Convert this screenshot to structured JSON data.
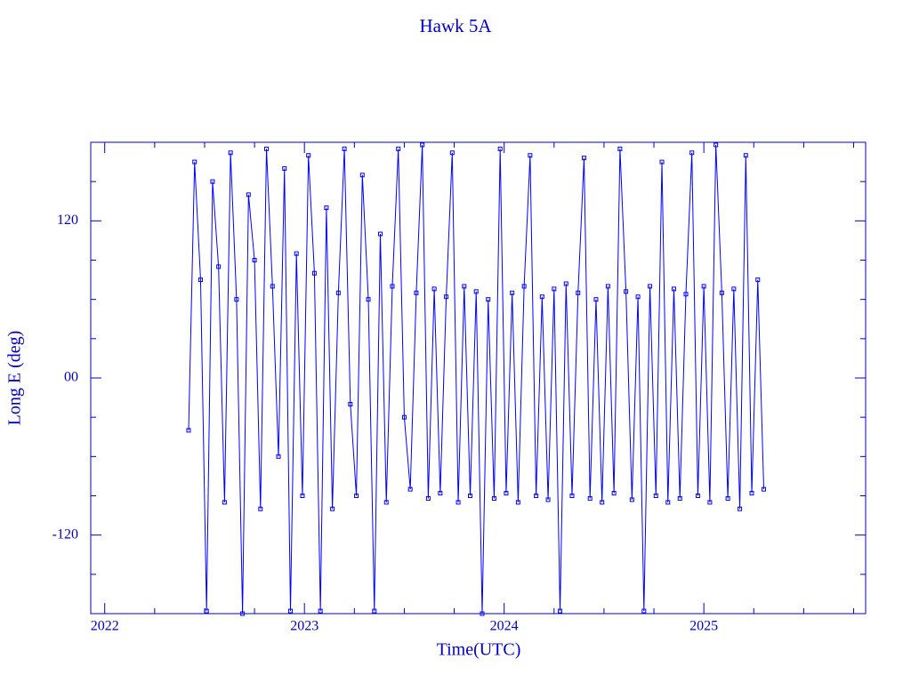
{
  "chart_data": {
    "type": "line",
    "title": "Hawk 5A",
    "xlabel": "Time(UTC)",
    "ylabel": "Long E (deg)",
    "x": [
      2022.42,
      2022.45,
      2022.48,
      2022.51,
      2022.54,
      2022.57,
      2022.6,
      2022.63,
      2022.66,
      2022.69,
      2022.72,
      2022.75,
      2022.78,
      2022.81,
      2022.84,
      2022.87,
      2022.9,
      2022.93,
      2022.96,
      2022.99,
      2023.02,
      2023.05,
      2023.08,
      2023.11,
      2023.14,
      2023.17,
      2023.2,
      2023.23,
      2023.26,
      2023.29,
      2023.32,
      2023.35,
      2023.38,
      2023.41,
      2023.44,
      2023.47,
      2023.5,
      2023.53,
      2023.56,
      2023.59,
      2023.62,
      2023.65,
      2023.68,
      2023.71,
      2023.74,
      2023.77,
      2023.8,
      2023.83,
      2023.86,
      2023.89,
      2023.92,
      2023.95,
      2023.98,
      2024.01,
      2024.04,
      2024.07,
      2024.1,
      2024.13,
      2024.16,
      2024.19,
      2024.22,
      2024.25,
      2024.28,
      2024.31,
      2024.34,
      2024.37,
      2024.4,
      2024.43,
      2024.46,
      2024.49,
      2024.52,
      2024.55,
      2024.58,
      2024.61,
      2024.64,
      2024.67,
      2024.7,
      2024.73,
      2024.76,
      2024.79,
      2024.82,
      2024.85,
      2024.88,
      2024.91,
      2024.94,
      2024.97,
      2025.0,
      2025.03,
      2025.06,
      2025.09,
      2025.12,
      2025.15,
      2025.18,
      2025.21,
      2025.24,
      2025.27,
      2025.3
    ],
    "series": [
      {
        "color": "#0000ff",
        "values": [
          -40,
          165,
          75,
          -178,
          150,
          85,
          -95,
          172,
          60,
          -180,
          140,
          90,
          -100,
          175,
          70,
          -60,
          160,
          -178,
          95,
          -90,
          170,
          80,
          -178,
          130,
          -100,
          65,
          175,
          -20,
          -90,
          155,
          60,
          -178,
          110,
          -95,
          70,
          175,
          -30,
          -85,
          65,
          178,
          -92,
          68,
          -88,
          62,
          172,
          -95,
          70,
          -90,
          66,
          -180,
          60,
          -92,
          175,
          -88,
          65,
          -95,
          70,
          170,
          -90,
          62,
          -93,
          68,
          -178,
          72,
          -90,
          65,
          168,
          -92,
          60,
          -95,
          70,
          -88,
          175,
          66,
          -93,
          62,
          -178,
          70,
          -90,
          165,
          -95,
          68,
          -92,
          64,
          172,
          -90,
          70,
          -95,
          178,
          65,
          -92,
          68,
          -100,
          170,
          -88,
          75,
          -85
        ]
      }
    ],
    "xlim": [
      2021.93,
      2025.81
    ],
    "xticks": [
      2022,
      2023,
      2024,
      2025
    ],
    "xminorticks": [
      2022.25,
      2022.5,
      2022.75,
      2023.25,
      2023.5,
      2023.75,
      2024.25,
      2024.5,
      2024.75,
      2025.25,
      2025.5,
      2025.75
    ],
    "ylim": [
      -180,
      180
    ],
    "yticks": [
      120,
      {
        "value": 0,
        "label": "00"
      },
      -120
    ],
    "yminorticks": [
      -150,
      -90,
      -60,
      -30,
      30,
      60,
      90,
      150
    ]
  }
}
